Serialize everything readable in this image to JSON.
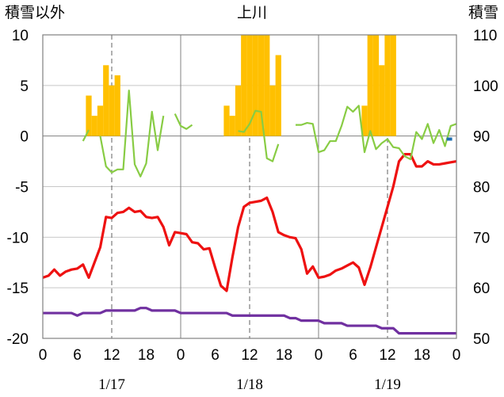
{
  "chart_data": {
    "type": "bar+line",
    "title": "上川",
    "ylabel_left": "積雪以外",
    "ylabel_right": "積雪",
    "left_axis": {
      "min": -20,
      "max": 10,
      "ticks": [
        10,
        5,
        0,
        -5,
        -10,
        -15,
        -20
      ]
    },
    "right_axis": {
      "min": 50,
      "max": 110,
      "ticks": [
        110,
        100,
        90,
        80,
        70,
        60,
        50
      ]
    },
    "x_tick_labels": [
      "0",
      "6",
      "12",
      "18",
      "0",
      "6",
      "12",
      "18",
      "0",
      "6",
      "12",
      "18",
      "0"
    ],
    "x_ticks_hours": [
      0,
      6,
      12,
      18,
      24,
      30,
      36,
      42,
      48,
      54,
      60,
      66,
      72
    ],
    "date_labels": [
      "1/17",
      "1/18",
      "1/19"
    ],
    "bars_snowfall": [
      {
        "x": 8,
        "v": 4
      },
      {
        "x": 9,
        "v": 2
      },
      {
        "x": 10,
        "v": 3
      },
      {
        "x": 11,
        "v": 7
      },
      {
        "x": 12,
        "v": 5
      },
      {
        "x": 13,
        "v": 6
      },
      {
        "x": 32,
        "v": 3
      },
      {
        "x": 33,
        "v": 2
      },
      {
        "x": 34,
        "v": 5
      },
      {
        "x": 35,
        "v": 10
      },
      {
        "x": 36,
        "v": 10
      },
      {
        "x": 37,
        "v": 10
      },
      {
        "x": 38,
        "v": 10
      },
      {
        "x": 39,
        "v": 10
      },
      {
        "x": 40,
        "v": 5
      },
      {
        "x": 41,
        "v": 8
      },
      {
        "x": 56,
        "v": 3
      },
      {
        "x": 57,
        "v": 10
      },
      {
        "x": 58,
        "v": 10
      },
      {
        "x": 59,
        "v": 7
      },
      {
        "x": 60,
        "v": 10
      },
      {
        "x": 61,
        "v": 10
      }
    ],
    "series": [
      {
        "color": "#ee1111",
        "axis": "left",
        "points": [
          [
            0,
            -14
          ],
          [
            1,
            -13.8
          ],
          [
            2,
            -13.2
          ],
          [
            3,
            -13.8
          ],
          [
            4,
            -13.4
          ],
          [
            5,
            -13.2
          ],
          [
            6,
            -13.1
          ],
          [
            7,
            -12.7
          ],
          [
            8,
            -14
          ],
          [
            9,
            -12.5
          ],
          [
            10,
            -11
          ],
          [
            11,
            -8
          ],
          [
            12,
            -8.1
          ],
          [
            13,
            -7.6
          ],
          [
            14,
            -7.5
          ],
          [
            15,
            -7.1
          ],
          [
            16,
            -7.5
          ],
          [
            17,
            -7.4
          ],
          [
            18,
            -8
          ],
          [
            19,
            -8.1
          ],
          [
            20,
            -8
          ],
          [
            21,
            -9
          ],
          [
            22,
            -10.8
          ],
          [
            23,
            -9.5
          ],
          [
            24,
            -9.6
          ],
          [
            25,
            -9.7
          ],
          [
            26,
            -10.5
          ],
          [
            27,
            -10.6
          ],
          [
            28,
            -11.2
          ],
          [
            29,
            -11.1
          ],
          [
            30,
            -13
          ],
          [
            31,
            -14.8
          ],
          [
            32,
            -15.3
          ],
          [
            33,
            -12
          ],
          [
            34,
            -9
          ],
          [
            35,
            -7
          ],
          [
            36,
            -6.6
          ],
          [
            37,
            -6.5
          ],
          [
            38,
            -6.4
          ],
          [
            39,
            -6.1
          ],
          [
            40,
            -7.5
          ],
          [
            41,
            -9.5
          ],
          [
            42,
            -9.8
          ],
          [
            43,
            -10
          ],
          [
            44,
            -10.1
          ],
          [
            45,
            -11.2
          ],
          [
            46,
            -13.6
          ],
          [
            47,
            -12.9
          ],
          [
            48,
            -14
          ],
          [
            49,
            -13.9
          ],
          [
            50,
            -13.7
          ],
          [
            51,
            -13.3
          ],
          [
            52,
            -13.1
          ],
          [
            53,
            -12.8
          ],
          [
            54,
            -12.5
          ],
          [
            55,
            -13
          ],
          [
            56,
            -14.7
          ],
          [
            57,
            -13
          ],
          [
            58,
            -11
          ],
          [
            59,
            -9
          ],
          [
            60,
            -7
          ],
          [
            61,
            -5
          ],
          [
            62,
            -2.5
          ],
          [
            63,
            -1.8
          ],
          [
            64,
            -1.8
          ],
          [
            65,
            -3
          ],
          [
            66,
            -3
          ],
          [
            67,
            -2.5
          ],
          [
            68,
            -2.8
          ],
          [
            69,
            -2.8
          ],
          [
            70,
            -2.7
          ],
          [
            71,
            -2.6
          ],
          [
            72,
            -2.5
          ]
        ]
      },
      {
        "color": "#88cc44",
        "axis": "left",
        "segments": [
          [
            [
              7,
              -0.5
            ],
            [
              8,
              0.6
            ]
          ],
          [
            [
              10,
              0
            ],
            [
              11,
              -3
            ],
            [
              12,
              -3.6
            ],
            [
              13,
              -3.3
            ],
            [
              14,
              -3.3
            ],
            [
              15,
              4.5
            ],
            [
              16,
              -2.8
            ],
            [
              17,
              -4
            ],
            [
              18,
              -2.7
            ],
            [
              19,
              2.4
            ],
            [
              20,
              -1.4
            ],
            [
              21,
              2
            ]
          ],
          [
            [
              23,
              2.2
            ],
            [
              24,
              1
            ],
            [
              25,
              0.7
            ],
            [
              26,
              1.1
            ]
          ],
          [
            [
              34,
              0.5
            ],
            [
              35,
              0.4
            ],
            [
              36,
              1.2
            ],
            [
              37,
              2.5
            ],
            [
              38,
              2.4
            ],
            [
              39,
              -2.2
            ],
            [
              40,
              -2.5
            ],
            [
              41,
              -0.8
            ]
          ],
          [
            [
              44,
              1.1
            ],
            [
              45,
              1.1
            ],
            [
              46,
              1.3
            ],
            [
              47,
              1.2
            ],
            [
              48,
              -1.6
            ],
            [
              49,
              -1.4
            ],
            [
              50,
              -0.5
            ],
            [
              51,
              -0.5
            ],
            [
              52,
              1
            ],
            [
              53,
              2.9
            ],
            [
              54,
              2.4
            ],
            [
              55,
              3
            ],
            [
              56,
              -1.6
            ],
            [
              57,
              0.5
            ],
            [
              58,
              -1.3
            ],
            [
              59,
              -0.7
            ],
            [
              60,
              -0.3
            ],
            [
              61,
              -1.1
            ],
            [
              62,
              -1.2
            ],
            [
              63,
              -2
            ],
            [
              64,
              -2.3
            ],
            [
              65,
              0.4
            ],
            [
              66,
              -0.3
            ],
            [
              67,
              1.2
            ],
            [
              68,
              -0.7
            ],
            [
              69,
              0.6
            ],
            [
              70,
              -1
            ],
            [
              71,
              1
            ],
            [
              72,
              1.2
            ]
          ]
        ]
      },
      {
        "color": "#7030a0",
        "axis": "right",
        "points": [
          [
            0,
            55
          ],
          [
            5,
            55
          ],
          [
            6,
            54.5
          ],
          [
            7,
            55
          ],
          [
            10,
            55
          ],
          [
            11,
            55.5
          ],
          [
            16,
            55.5
          ],
          [
            17,
            56
          ],
          [
            18,
            56
          ],
          [
            19,
            55.5
          ],
          [
            23,
            55.5
          ],
          [
            24,
            55
          ],
          [
            32,
            55
          ],
          [
            33,
            54.5
          ],
          [
            42,
            54.5
          ],
          [
            43,
            54
          ],
          [
            44,
            54
          ],
          [
            45,
            53.5
          ],
          [
            48,
            53.5
          ],
          [
            49,
            53
          ],
          [
            52,
            53
          ],
          [
            53,
            52.5
          ],
          [
            58,
            52.5
          ],
          [
            59,
            52
          ],
          [
            61,
            52
          ],
          [
            62,
            51
          ],
          [
            72,
            51
          ]
        ]
      }
    ],
    "small_marker": {
      "x": 70.7,
      "v": -0.3,
      "color": "#1f6fb0"
    },
    "gridlines": true
  }
}
